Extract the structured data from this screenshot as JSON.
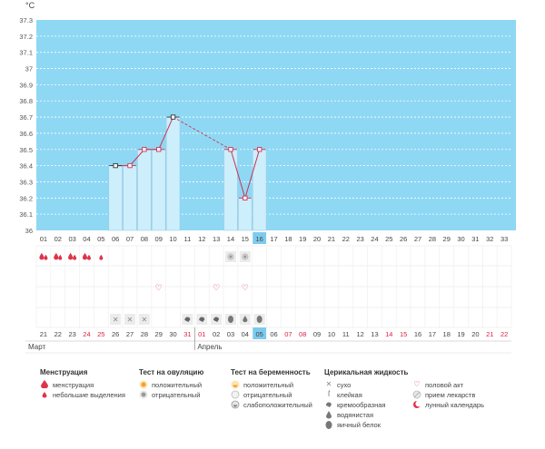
{
  "unit": "°C",
  "colors": {
    "plot_bg": "#8fd8f4",
    "bar_fill": "#cdeefb",
    "bar_stroke": "#9ccbe5",
    "line": "#cc3355",
    "dashed": "#cc3355",
    "red_date": "#dd2244",
    "highlight": "#7ccbee",
    "grid_dots": "#ffffff",
    "legend_red": "#e0334a"
  },
  "chart_data": {
    "type": "line",
    "ylabel": "°C",
    "ylim": [
      36.0,
      37.3
    ],
    "y_ticks": [
      "36",
      "36.1",
      "36.2",
      "36.3",
      "36.4",
      "36.5",
      "36.6",
      "36.7",
      "36.8",
      "36.9",
      "37",
      "37.1",
      "37.2",
      "37.3"
    ],
    "cycle_days": [
      "01",
      "02",
      "03",
      "04",
      "05",
      "06",
      "07",
      "08",
      "09",
      "10",
      "11",
      "12",
      "13",
      "14",
      "15",
      "16",
      "17",
      "18",
      "19",
      "20",
      "21",
      "22",
      "23",
      "24",
      "25",
      "26",
      "27",
      "28",
      "29",
      "30",
      "31",
      "32",
      "33"
    ],
    "current_day_index": 15,
    "calendar_dates": [
      "21",
      "22",
      "23",
      "24",
      "25",
      "26",
      "27",
      "28",
      "29",
      "30",
      "31",
      "01",
      "02",
      "03",
      "04",
      "05",
      "06",
      "07",
      "08",
      "09",
      "10",
      "11",
      "12",
      "13",
      "14",
      "15",
      "16",
      "17",
      "18",
      "19",
      "20",
      "21",
      "22"
    ],
    "calendar_red_indices": [
      3,
      4,
      10,
      11,
      17,
      18,
      24,
      25,
      31,
      32
    ],
    "months": [
      {
        "label": "Март",
        "start_index": 0
      },
      {
        "label": "Апрель",
        "start_index": 11
      }
    ],
    "series": [
      {
        "days": [
          6,
          7,
          8,
          9,
          10,
          14,
          15,
          16
        ],
        "values": [
          36.4,
          36.4,
          36.5,
          36.5,
          36.7,
          36.5,
          36.2,
          36.5
        ]
      }
    ],
    "solid_segments": [
      [
        6,
        7
      ],
      [
        7,
        8
      ],
      [
        8,
        9
      ],
      [
        9,
        10
      ],
      [
        14,
        15
      ],
      [
        15,
        16
      ]
    ],
    "dashed_segments": [
      [
        10,
        14
      ]
    ],
    "black_markers": [
      6,
      10
    ]
  },
  "marks": {
    "menstruation": [
      {
        "day": 1,
        "type": "heavy"
      },
      {
        "day": 2,
        "type": "heavy"
      },
      {
        "day": 3,
        "type": "heavy"
      },
      {
        "day": 4,
        "type": "heavy"
      },
      {
        "day": 5,
        "type": "light"
      }
    ],
    "test": [
      {
        "day": 14,
        "type": "negative"
      },
      {
        "day": 15,
        "type": "negative"
      }
    ],
    "sex": [
      9,
      13,
      15
    ],
    "fluid": [
      {
        "day": 6,
        "type": "dry"
      },
      {
        "day": 7,
        "type": "dry"
      },
      {
        "day": 8,
        "type": "dry"
      },
      {
        "day": 11,
        "type": "creamy"
      },
      {
        "day": 12,
        "type": "creamy"
      },
      {
        "day": 13,
        "type": "creamy"
      },
      {
        "day": 14,
        "type": "egg"
      },
      {
        "day": 15,
        "type": "watery"
      },
      {
        "day": 16,
        "type": "egg"
      }
    ]
  },
  "legend": {
    "menstruation": {
      "title": "Менструация",
      "items": [
        "менструация",
        "небольшие выделения"
      ]
    },
    "ovulation_test": {
      "title": "Тест на овуляцию",
      "items": [
        "положительный",
        "отрицательный"
      ]
    },
    "pregnancy_test": {
      "title": "Тест на беременность",
      "items": [
        "положительный",
        "отрицательный",
        "слабоположительный"
      ]
    },
    "cervical_fluid": {
      "title": "Церикальная жидкость",
      "items": [
        "сухо",
        "клейкая",
        "кремообразная",
        "водянистая",
        "яичный белок"
      ]
    },
    "other": {
      "items": [
        "половой акт",
        "прием лекарств",
        "лунный календарь"
      ]
    }
  }
}
